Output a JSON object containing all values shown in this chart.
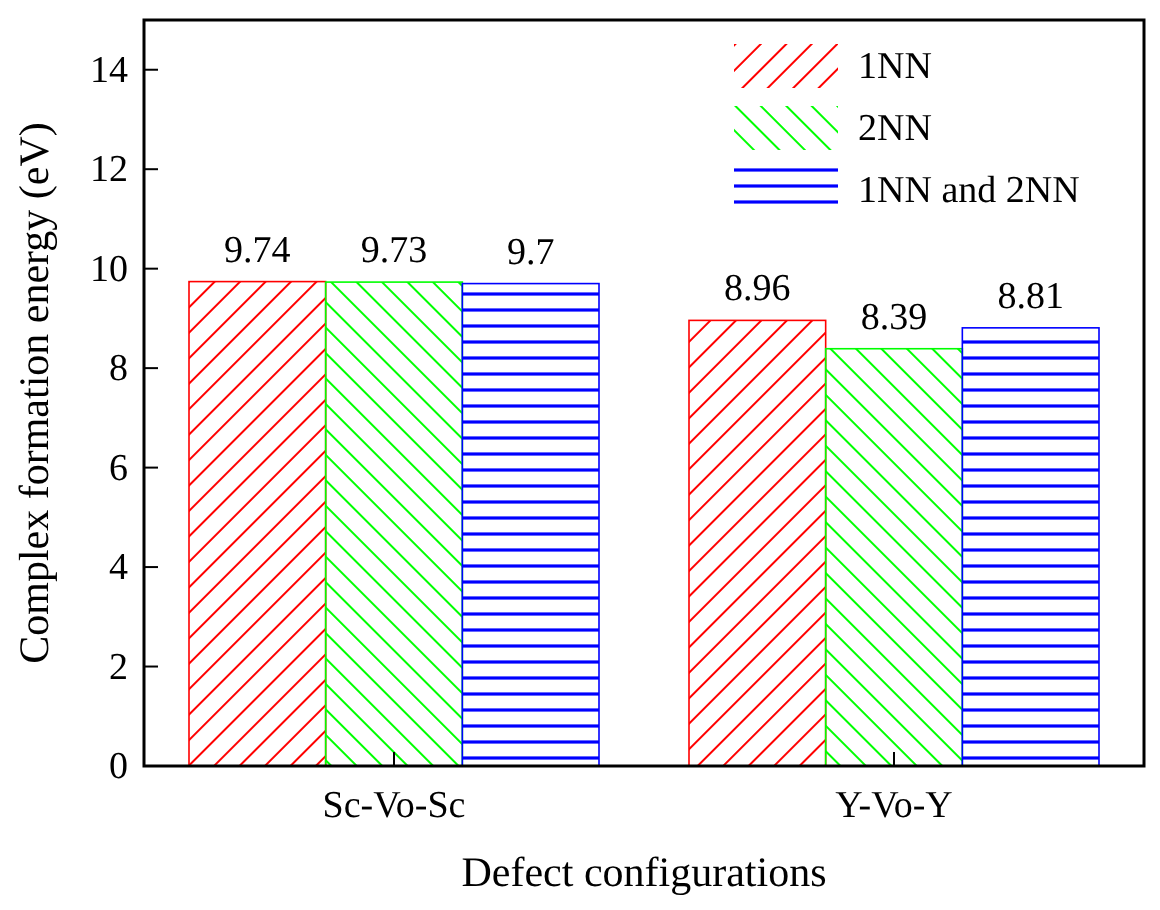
{
  "chart_data": {
    "type": "bar",
    "xlabel": "Defect configurations",
    "ylabel": "Complex formation energy (eV)",
    "categories": [
      "Sc-Vo-Sc",
      "Y-Vo-Y"
    ],
    "series": [
      {
        "name": "1NN",
        "color": "#ff0000",
        "values": [
          9.74,
          8.96
        ]
      },
      {
        "name": "2NN",
        "color": "#00ff00",
        "values": [
          9.73,
          8.39
        ]
      },
      {
        "name": "1NN and 2NN",
        "color": "#0000ff",
        "values": [
          9.7,
          8.81
        ]
      }
    ],
    "ylim": [
      0,
      15
    ],
    "yticks": [
      0,
      2,
      4,
      6,
      8,
      10,
      12,
      14
    ],
    "data_labels": true,
    "legend": "top right",
    "grid": false
  }
}
